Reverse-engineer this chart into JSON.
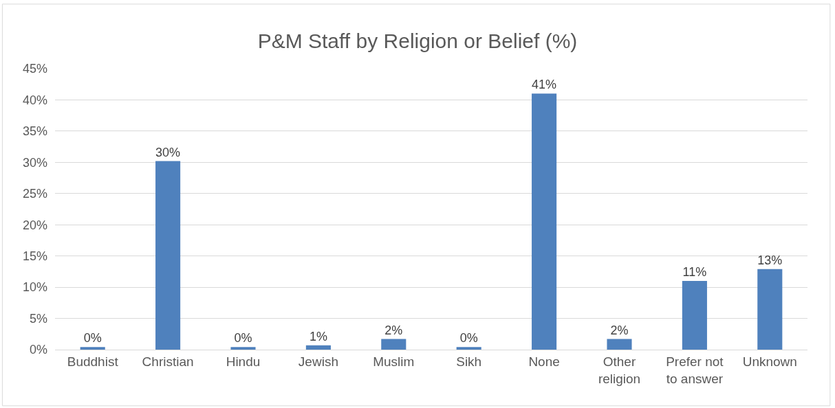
{
  "chart_data": {
    "type": "bar",
    "title": "P&M Staff by Religion or Belief (%)",
    "categories": [
      "Buddhist",
      "Christian",
      "Hindu",
      "Jewish",
      "Muslim",
      "Sikh",
      "None",
      "Other religion",
      "Prefer not to answer",
      "Unknown"
    ],
    "values": [
      0.4,
      30.2,
      0.4,
      0.7,
      1.7,
      0.4,
      41.0,
      1.7,
      11.0,
      12.9
    ],
    "value_labels": [
      "0%",
      "30%",
      "0%",
      "1%",
      "2%",
      "0%",
      "41%",
      "2%",
      "11%",
      "13%"
    ],
    "color": "#4f81bd",
    "ylim": [
      0,
      45
    ],
    "yticks": [
      {
        "value": 0,
        "label": "0%"
      },
      {
        "value": 5,
        "label": "5%"
      },
      {
        "value": 10,
        "label": "10%"
      },
      {
        "value": 15,
        "label": "15%"
      },
      {
        "value": 20,
        "label": "20%"
      },
      {
        "value": 25,
        "label": "25%"
      },
      {
        "value": 30,
        "label": "30%"
      },
      {
        "value": 35,
        "label": "35%"
      },
      {
        "value": 40,
        "label": "40%"
      },
      {
        "value": 45,
        "label": "45%"
      }
    ],
    "grid": "y"
  }
}
